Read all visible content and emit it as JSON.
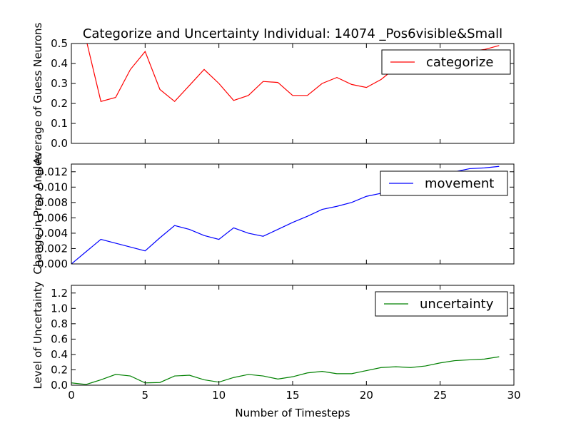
{
  "figure": {
    "title": "Categorize and Uncertainty Individual: 14074 _Pos6visible&Small",
    "xlabel": "Number of Timesteps"
  },
  "chart_data": [
    {
      "type": "line",
      "ylabel": "Average of Guess Neurons",
      "xlim": [
        0,
        30
      ],
      "ylim": [
        0,
        0.5
      ],
      "yticks": [
        "0.0",
        "0.1",
        "0.2",
        "0.3",
        "0.4",
        "0.5"
      ],
      "grid": false,
      "legend_position": "top-right",
      "series": [
        {
          "name": "categorize",
          "color": "#ff0000",
          "x": [
            0,
            1,
            2,
            3,
            4,
            5,
            6,
            7,
            8,
            9,
            10,
            11,
            12,
            13,
            14,
            15,
            16,
            17,
            18,
            19,
            20,
            21,
            22,
            23,
            24,
            25,
            26,
            27,
            28,
            29
          ],
          "values": [
            0.5,
            0.52,
            0.21,
            0.23,
            0.37,
            0.46,
            0.27,
            0.21,
            0.29,
            0.37,
            0.3,
            0.215,
            0.24,
            0.31,
            0.305,
            0.24,
            0.24,
            0.3,
            0.33,
            0.295,
            0.28,
            0.32,
            0.38,
            0.4,
            0.42,
            0.44,
            0.45,
            0.46,
            0.47,
            0.49
          ]
        }
      ]
    },
    {
      "type": "line",
      "ylabel": "Change in Prop Angles",
      "xlim": [
        0,
        30
      ],
      "ylim": [
        0,
        0.013
      ],
      "yticks": [
        "0.000",
        "0.002",
        "0.004",
        "0.006",
        "0.008",
        "0.010",
        "0.012"
      ],
      "grid": false,
      "legend_position": "top-right",
      "series": [
        {
          "name": "movement",
          "color": "#0000ff",
          "x": [
            0,
            1,
            2,
            3,
            4,
            5,
            6,
            7,
            8,
            9,
            10,
            11,
            12,
            13,
            14,
            15,
            16,
            17,
            18,
            19,
            20,
            21,
            22,
            23,
            24,
            25,
            26,
            27,
            28,
            29
          ],
          "values": [
            0.0,
            0.0016,
            0.0032,
            0.0027,
            0.0022,
            0.0017,
            0.0034,
            0.005,
            0.0045,
            0.0037,
            0.0032,
            0.0047,
            0.004,
            0.0036,
            0.0045,
            0.0054,
            0.0062,
            0.0071,
            0.0075,
            0.008,
            0.0088,
            0.0092,
            0.01,
            0.0106,
            0.0112,
            0.0116,
            0.012,
            0.0124,
            0.0125,
            0.0127
          ]
        }
      ]
    },
    {
      "type": "line",
      "ylabel": "Level of Uncertainty",
      "xlim": [
        0,
        30
      ],
      "ylim": [
        0,
        1.3
      ],
      "xticks": [
        "0",
        "5",
        "10",
        "15",
        "20",
        "25",
        "30"
      ],
      "yticks": [
        "0.0",
        "0.2",
        "0.4",
        "0.6",
        "0.8",
        "1.0",
        "1.2"
      ],
      "grid": false,
      "legend_position": "top-right",
      "series": [
        {
          "name": "uncertainty",
          "color": "#008000",
          "x": [
            0,
            1,
            2,
            3,
            4,
            5,
            6,
            7,
            8,
            9,
            10,
            11,
            12,
            13,
            14,
            15,
            16,
            17,
            18,
            19,
            20,
            21,
            22,
            23,
            24,
            25,
            26,
            27,
            28,
            29
          ],
          "values": [
            0.03,
            0.01,
            0.07,
            0.14,
            0.12,
            0.03,
            0.035,
            0.12,
            0.13,
            0.07,
            0.04,
            0.1,
            0.14,
            0.12,
            0.08,
            0.11,
            0.16,
            0.18,
            0.15,
            0.15,
            0.19,
            0.23,
            0.24,
            0.23,
            0.25,
            0.29,
            0.32,
            0.33,
            0.34,
            0.37
          ]
        }
      ]
    }
  ]
}
